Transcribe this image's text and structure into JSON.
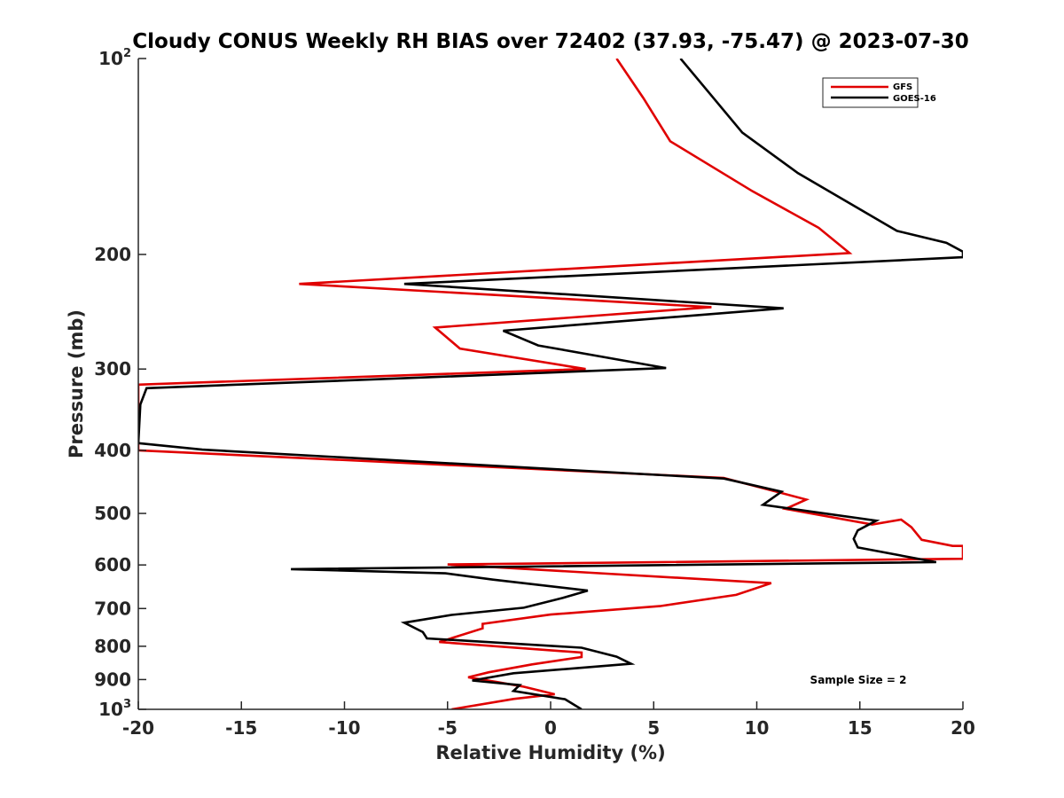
{
  "chart_data": {
    "type": "line",
    "title": "Cloudy CONUS Weekly RH BIAS over 72402 (37.93, -75.47) @ 2023-07-30",
    "xlabel": "Relative Humidity (%)",
    "ylabel": "Pressure (mb)",
    "xlim": [
      -20,
      20
    ],
    "ylim": [
      100,
      1000
    ],
    "y_scale": "log",
    "y_reversed": true,
    "grid": false,
    "legend_position": "top-right",
    "x_ticks": [
      {
        "value": -20,
        "label": "-20"
      },
      {
        "value": -15,
        "label": "-15"
      },
      {
        "value": -10,
        "label": "-10"
      },
      {
        "value": -5,
        "label": "-5"
      },
      {
        "value": 0,
        "label": "0"
      },
      {
        "value": 5,
        "label": "5"
      },
      {
        "value": 10,
        "label": "10"
      },
      {
        "value": 15,
        "label": "15"
      },
      {
        "value": 20,
        "label": "20"
      }
    ],
    "y_ticks": [
      {
        "value": 100,
        "base": "10",
        "exp": "2"
      },
      {
        "value": 200,
        "label": "200"
      },
      {
        "value": 300,
        "label": "300"
      },
      {
        "value": 400,
        "label": "400"
      },
      {
        "value": 500,
        "label": "500"
      },
      {
        "value": 600,
        "label": "600"
      },
      {
        "value": 700,
        "label": "700"
      },
      {
        "value": 800,
        "label": "800"
      },
      {
        "value": 900,
        "label": "900"
      },
      {
        "value": 1000,
        "base": "10",
        "exp": "3"
      }
    ],
    "annotation": "Sample Size = 2",
    "series": [
      {
        "name": "GFS",
        "color": "#e00000",
        "points": [
          [
            3.2,
            100
          ],
          [
            4.5,
            115
          ],
          [
            5.8,
            134
          ],
          [
            9.8,
            160
          ],
          [
            13.0,
            182
          ],
          [
            14.5,
            199
          ],
          [
            -12.2,
            222
          ],
          [
            7.8,
            241
          ],
          [
            -5.6,
            259
          ],
          [
            -4.4,
            279
          ],
          [
            1.7,
            300
          ],
          [
            -20.0,
            317
          ],
          [
            -20.0,
            400
          ],
          [
            8.4,
            441
          ],
          [
            12.4,
            476
          ],
          [
            11.4,
            492
          ],
          [
            15.6,
            520
          ],
          [
            17.0,
            511
          ],
          [
            17.5,
            525
          ],
          [
            18.0,
            549
          ],
          [
            19.5,
            561
          ],
          [
            20.0,
            561
          ],
          [
            20.0,
            587
          ],
          [
            -5.0,
            599
          ],
          [
            10.7,
            640
          ],
          [
            9.0,
            667
          ],
          [
            5.3,
            694
          ],
          [
            0.0,
            715
          ],
          [
            -3.3,
            739
          ],
          [
            -3.3,
            751
          ],
          [
            -5.4,
            788
          ],
          [
            1.5,
            818
          ],
          [
            1.5,
            831
          ],
          [
            -0.9,
            853
          ],
          [
            -3.0,
            877
          ],
          [
            -4.0,
            893
          ],
          [
            -2.6,
            908
          ],
          [
            -1.3,
            923
          ],
          [
            0.2,
            948
          ],
          [
            -1.8,
            964
          ],
          [
            -4.8,
            1000
          ]
        ]
      },
      {
        "name": "GOES-16",
        "color": "#000000",
        "points": [
          [
            6.3,
            100
          ],
          [
            7.8,
            114
          ],
          [
            9.3,
            130
          ],
          [
            12.0,
            150
          ],
          [
            14.8,
            169
          ],
          [
            16.8,
            184
          ],
          [
            19.2,
            192
          ],
          [
            20.0,
            198
          ],
          [
            20.0,
            202
          ],
          [
            -7.1,
            222
          ],
          [
            11.3,
            242
          ],
          [
            -2.3,
            262
          ],
          [
            -0.6,
            276
          ],
          [
            5.6,
            299
          ],
          [
            -19.6,
            321
          ],
          [
            -19.9,
            340
          ],
          [
            -20.0,
            390
          ],
          [
            -16.9,
            399
          ],
          [
            8.4,
            442
          ],
          [
            11.2,
            463
          ],
          [
            10.3,
            485
          ],
          [
            15.8,
            513
          ],
          [
            14.9,
            531
          ],
          [
            14.7,
            547
          ],
          [
            14.9,
            564
          ],
          [
            18.7,
            594
          ],
          [
            -12.6,
            609
          ],
          [
            -5.1,
            618
          ],
          [
            -2.8,
            632
          ],
          [
            1.8,
            657
          ],
          [
            0.6,
            674
          ],
          [
            -1.3,
            698
          ],
          [
            -4.8,
            716
          ],
          [
            -7.1,
            736
          ],
          [
            -6.2,
            761
          ],
          [
            -6.0,
            778
          ],
          [
            1.5,
            804
          ],
          [
            3.2,
            830
          ],
          [
            3.9,
            851
          ],
          [
            -1.8,
            880
          ],
          [
            -3.8,
            903
          ],
          [
            -1.5,
            918
          ],
          [
            -1.8,
            937
          ],
          [
            0.7,
            965
          ],
          [
            1.5,
            1000
          ]
        ]
      }
    ]
  }
}
